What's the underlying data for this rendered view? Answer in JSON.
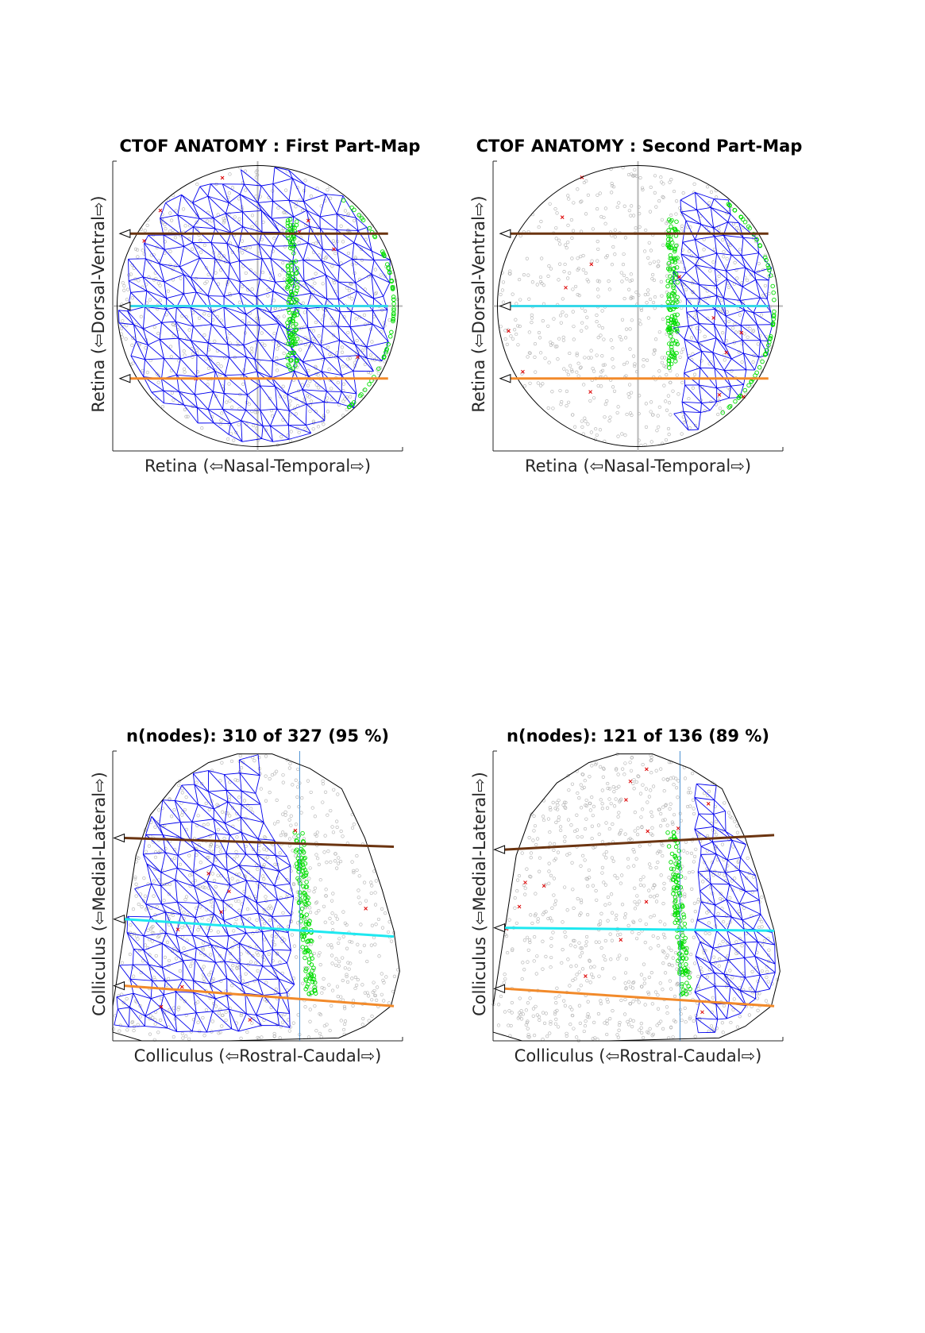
{
  "chart_data": [
    {
      "type": "scatter",
      "title": "CTOF ANATOMY : First Part-Map",
      "xlabel": "Retina (⇦Nasal-Temporal⇨)",
      "ylabel": "Retina (⇦Dorsal-Ventral⇨)",
      "shape": "circle",
      "mesh_side": "full",
      "series": [],
      "lines": [
        {
          "color": "#6b3410",
          "y0": 0.25,
          "y1": 0.25
        },
        {
          "color": "#36d8e8",
          "y0": 0.5,
          "y1": 0.5
        },
        {
          "color": "#f28a2a",
          "y0": 0.75,
          "y1": 0.75
        }
      ]
    },
    {
      "type": "scatter",
      "title": "CTOF ANATOMY : Second Part-Map",
      "xlabel": "Retina (⇦Nasal-Temporal⇨)",
      "ylabel": "Retina (⇦Dorsal-Ventral⇨)",
      "shape": "circle",
      "mesh_side": "right",
      "series": [],
      "lines": [
        {
          "color": "#6b3410",
          "y0": 0.25,
          "y1": 0.25
        },
        {
          "color": "#36d8e8",
          "y0": 0.5,
          "y1": 0.5
        },
        {
          "color": "#f28a2a",
          "y0": 0.75,
          "y1": 0.75
        }
      ]
    },
    {
      "type": "scatter",
      "title": "n(nodes): 310 of 327 (95 %)",
      "xlabel": "Colliculus (⇦Rostral-Caudal⇨)",
      "ylabel": "Colliculus (⇦Medial-Lateral⇨)",
      "shape": "colliculus",
      "mesh_side": "left",
      "nodes_shown": 310,
      "nodes_total": 327,
      "percent": 95,
      "series": [],
      "lines": [
        {
          "color": "#6b3410",
          "y0": 0.3,
          "y1": 0.33
        },
        {
          "color": "#1ee8f0",
          "y0": 0.58,
          "y1": 0.64
        },
        {
          "color": "#f28a2a",
          "y0": 0.81,
          "y1": 0.88
        }
      ]
    },
    {
      "type": "scatter",
      "title": "n(nodes): 121 of 136 (89 %)",
      "xlabel": "Colliculus (⇦Rostral-Caudal⇨)",
      "ylabel": "Colliculus (⇦Medial-Lateral⇨)",
      "shape": "colliculus",
      "mesh_side": "right",
      "nodes_shown": 121,
      "nodes_total": 136,
      "percent": 89,
      "series": [],
      "lines": [
        {
          "color": "#6b3410",
          "y0": 0.34,
          "y1": 0.29
        },
        {
          "color": "#1ee8f0",
          "y0": 0.61,
          "y1": 0.62
        },
        {
          "color": "#f28a2a",
          "y0": 0.82,
          "y1": 0.88
        }
      ]
    }
  ],
  "colors": {
    "mesh": "#0000ee",
    "points": "#b0b0b0",
    "front": "#00dd00",
    "excluded": "#dd0000",
    "outline": "#000000"
  }
}
